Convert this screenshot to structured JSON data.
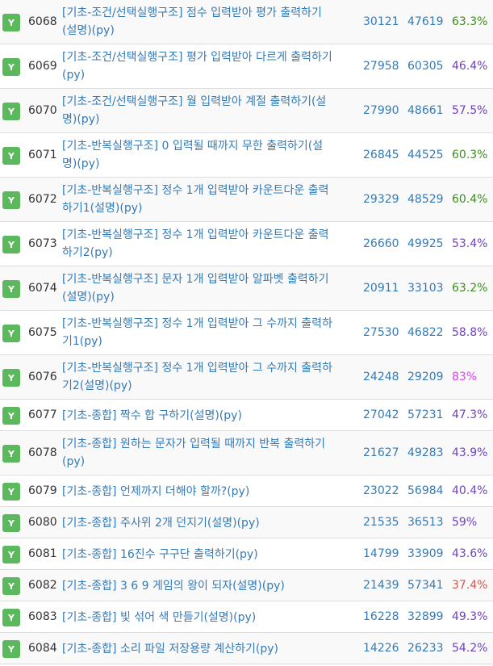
{
  "status_colors": {
    "badge": "#5cb85c",
    "rate_green": "#3c8d1c",
    "rate_purple": "#6f42c1",
    "rate_pink": "#e040fb",
    "rate_red": "#d9534f"
  },
  "problems": [
    {
      "badge": "Y",
      "id": "6068",
      "title": "[기초-조건/선택실행구조] 점수 입력받아 평가 출력하기(설명)(py)",
      "solved": "30121",
      "submissions": "47619",
      "rate": "63.3%",
      "rate_color": "#3c8d1c",
      "two_line": true
    },
    {
      "badge": "Y",
      "id": "6069",
      "title": "[기초-조건/선택실행구조] 평가 입력받아 다르게 출력하기(py)",
      "solved": "27958",
      "submissions": "60305",
      "rate": "46.4%",
      "rate_color": "#6f42c1",
      "two_line": true
    },
    {
      "badge": "Y",
      "id": "6070",
      "title": "[기초-조건/선택실행구조] 월 입력받아 계절 출력하기(설명)(py)",
      "solved": "27990",
      "submissions": "48661",
      "rate": "57.5%",
      "rate_color": "#6f42c1",
      "two_line": true
    },
    {
      "badge": "Y",
      "id": "6071",
      "title": "[기초-반복실행구조] 0 입력될 때까지 무한 출력하기(설명)(py)",
      "solved": "26845",
      "submissions": "44525",
      "rate": "60.3%",
      "rate_color": "#3c8d1c",
      "two_line": true
    },
    {
      "badge": "Y",
      "id": "6072",
      "title": "[기초-반복실행구조] 정수 1개 입력받아 카운트다운 출력하기1(설명)(py)",
      "solved": "29329",
      "submissions": "48529",
      "rate": "60.4%",
      "rate_color": "#3c8d1c",
      "two_line": true
    },
    {
      "badge": "Y",
      "id": "6073",
      "title": "[기초-반복실행구조] 정수 1개 입력받아 카운트다운 출력하기2(py)",
      "solved": "26660",
      "submissions": "49925",
      "rate": "53.4%",
      "rate_color": "#6f42c1",
      "two_line": true
    },
    {
      "badge": "Y",
      "id": "6074",
      "title": "[기초-반복실행구조] 문자 1개 입력받아 알파벳 출력하기(설명)(py)",
      "solved": "20911",
      "submissions": "33103",
      "rate": "63.2%",
      "rate_color": "#3c8d1c",
      "two_line": true
    },
    {
      "badge": "Y",
      "id": "6075",
      "title": "[기초-반복실행구조] 정수 1개 입력받아 그 수까지 출력하기1(py)",
      "solved": "27530",
      "submissions": "46822",
      "rate": "58.8%",
      "rate_color": "#6f42c1",
      "two_line": true
    },
    {
      "badge": "Y",
      "id": "6076",
      "title": "[기초-반복실행구조] 정수 1개 입력받아 그 수까지 출력하기2(설명)(py)",
      "solved": "24248",
      "submissions": "29209",
      "rate": "83%",
      "rate_color": "#e040fb",
      "two_line": true
    },
    {
      "badge": "Y",
      "id": "6077",
      "title": "[기초-종합] 짝수 합 구하기(설명)(py)",
      "solved": "27042",
      "submissions": "57231",
      "rate": "47.3%",
      "rate_color": "#6f42c1",
      "two_line": false
    },
    {
      "badge": "Y",
      "id": "6078",
      "title": "[기초-종합] 원하는 문자가 입력될 때까지 반복 출력하기(py)",
      "solved": "21627",
      "submissions": "49283",
      "rate": "43.9%",
      "rate_color": "#6f42c1",
      "two_line": true
    },
    {
      "badge": "Y",
      "id": "6079",
      "title": "[기초-종합] 언제까지 더해야 할까?(py)",
      "solved": "23022",
      "submissions": "56984",
      "rate": "40.4%",
      "rate_color": "#6f42c1",
      "two_line": false
    },
    {
      "badge": "Y",
      "id": "6080",
      "title": "[기초-종합] 주사위 2개 던지기(설명)(py)",
      "solved": "21535",
      "submissions": "36513",
      "rate": "59%",
      "rate_color": "#6f42c1",
      "two_line": false
    },
    {
      "badge": "Y",
      "id": "6081",
      "title": "[기초-종합] 16진수 구구단 출력하기(py)",
      "solved": "14799",
      "submissions": "33909",
      "rate": "43.6%",
      "rate_color": "#6f42c1",
      "two_line": false
    },
    {
      "badge": "Y",
      "id": "6082",
      "title": "[기초-종합] 3 6 9 게임의 왕이 되자(설명)(py)",
      "solved": "21439",
      "submissions": "57341",
      "rate": "37.4%",
      "rate_color": "#d9534f",
      "two_line": false
    },
    {
      "badge": "Y",
      "id": "6083",
      "title": "[기초-종합] 빛 섞어 색 만들기(설명)(py)",
      "solved": "16228",
      "submissions": "32899",
      "rate": "49.3%",
      "rate_color": "#6f42c1",
      "two_line": false
    },
    {
      "badge": "Y",
      "id": "6084",
      "title": "[기초-종합] 소리 파일 저장용량 계산하기(py)",
      "solved": "14226",
      "submissions": "26233",
      "rate": "54.2%",
      "rate_color": "#6f42c1",
      "two_line": false
    }
  ]
}
